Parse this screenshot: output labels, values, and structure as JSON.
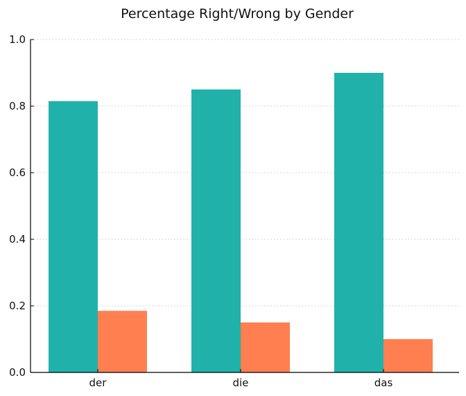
{
  "chart_data": {
    "type": "bar",
    "title": "Percentage Right/Wrong by Gender",
    "xlabel": "",
    "ylabel": "",
    "categories": [
      "der",
      "die",
      "das"
    ],
    "series": [
      {
        "values": [
          0.815,
          0.85,
          0.9
        ],
        "color": "#20b2aa"
      },
      {
        "values": [
          0.185,
          0.15,
          0.1
        ],
        "color": "#ff7f50"
      }
    ],
    "ylim": [
      0,
      1.0
    ],
    "yticks": [
      "0.0",
      "0.2",
      "0.4",
      "0.6",
      "0.8",
      "1.0"
    ],
    "grid": "y-dotted",
    "legend": "none"
  }
}
